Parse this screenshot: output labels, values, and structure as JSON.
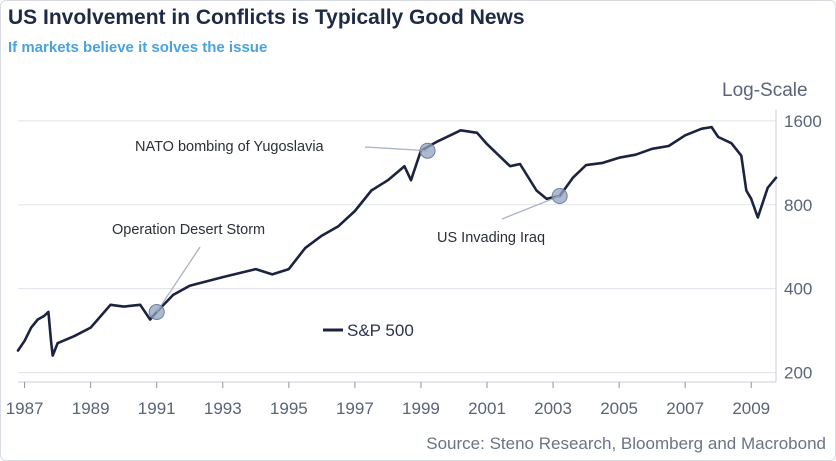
{
  "header": {
    "title": "US Involvement in Conflicts is Typically Good News",
    "subtitle": "If markets believe it solves the issue"
  },
  "footer": {
    "source": "Source: Steno Research, Bloomberg and Macrobond"
  },
  "colors": {
    "title": "#1f2a44",
    "subtitle": "#4aa3df",
    "series_line": "#1c2340",
    "marker": "#8fa3bf"
  },
  "chart_data": {
    "type": "line",
    "title": "US Involvement in Conflicts is Typically Good News",
    "subtitle": "If markets believe it solves the issue",
    "y_scale": "log",
    "y_scale_label": "Log-Scale",
    "ylim": [
      185,
      1750
    ],
    "xlim": [
      1986.8,
      2009.75
    ],
    "y_ticks": [
      200,
      400,
      800,
      1600
    ],
    "x_ticks": [
      1987,
      1989,
      1991,
      1993,
      1995,
      1997,
      1999,
      2001,
      2003,
      2005,
      2007,
      2009
    ],
    "grid": "horizontal",
    "legend_position": "lower-left",
    "series": [
      {
        "name": "S&P 500",
        "x": [
          1986.8,
          1987.0,
          1987.2,
          1987.4,
          1987.6,
          1987.72,
          1987.8,
          1987.85,
          1988.0,
          1988.5,
          1989.0,
          1989.6,
          1990.0,
          1990.5,
          1990.8,
          1991.0,
          1991.5,
          1992.0,
          1993.0,
          1994.0,
          1994.5,
          1995.0,
          1995.5,
          1996.0,
          1996.5,
          1997.0,
          1997.5,
          1998.0,
          1998.5,
          1998.7,
          1999.0,
          1999.5,
          2000.0,
          2000.2,
          2000.7,
          2001.0,
          2001.7,
          2002.0,
          2002.5,
          2002.8,
          2003.0,
          2003.2,
          2003.6,
          2004.0,
          2004.5,
          2005.0,
          2005.5,
          2006.0,
          2006.5,
          2007.0,
          2007.5,
          2007.8,
          2008.0,
          2008.4,
          2008.7,
          2008.85,
          2009.0,
          2009.2,
          2009.5,
          2009.75
        ],
        "y": [
          240,
          260,
          290,
          310,
          320,
          330,
          260,
          230,
          255,
          270,
          290,
          350,
          345,
          350,
          310,
          330,
          380,
          410,
          440,
          470,
          450,
          470,
          560,
          620,
          670,
          760,
          900,
          980,
          1100,
          980,
          1250,
          1350,
          1440,
          1480,
          1450,
          1320,
          1100,
          1120,
          900,
          840,
          850,
          860,
          1000,
          1110,
          1130,
          1180,
          1210,
          1270,
          1300,
          1420,
          1500,
          1520,
          1400,
          1330,
          1200,
          900,
          840,
          720,
          920,
          1000
        ]
      }
    ],
    "annotations": [
      {
        "label": "Operation Desert Storm",
        "x": 1991.0,
        "y": 330
      },
      {
        "label": "NATO bombing of Yugoslavia",
        "x": 1999.2,
        "y": 1250
      },
      {
        "label": "US Invading Iraq",
        "x": 2003.2,
        "y": 860
      }
    ]
  }
}
